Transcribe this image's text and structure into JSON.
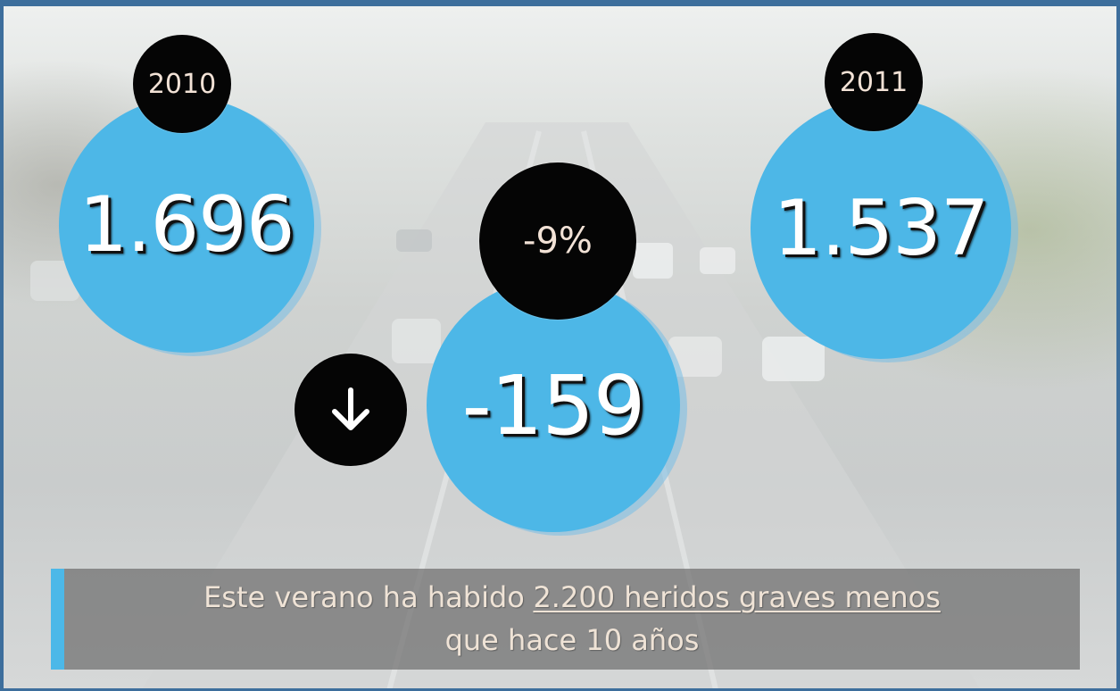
{
  "circles": [
    {
      "year": "2010",
      "value": "1.696"
    },
    {
      "year": "2011",
      "value": "1.537"
    }
  ],
  "change": {
    "percent": "-9%",
    "value": "-159"
  },
  "footer": {
    "text_before": "Este verano ha habido",
    "highlight": "2.200 heridos graves menos",
    "line2": "que hace 10 años"
  }
}
